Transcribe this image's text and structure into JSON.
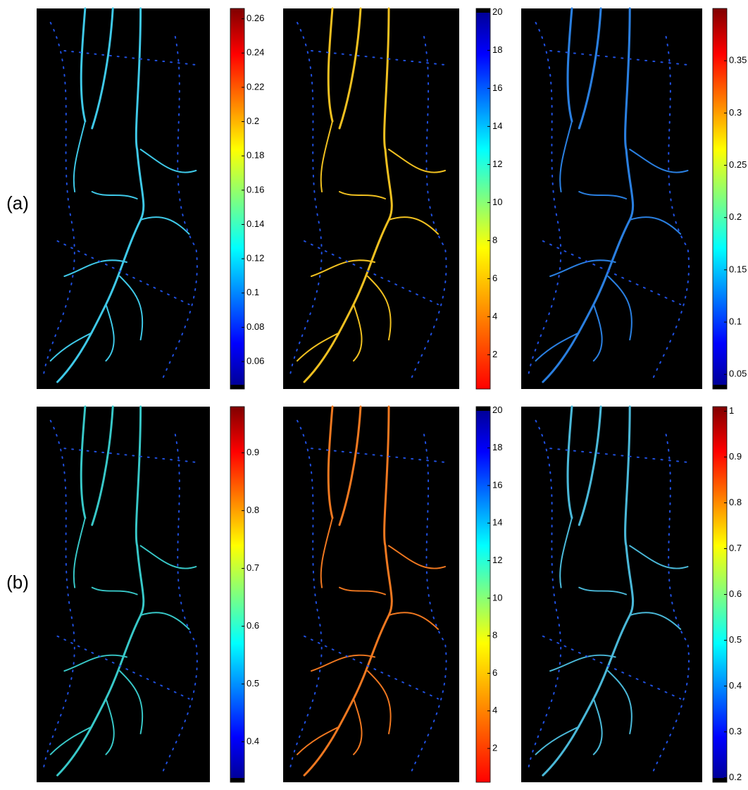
{
  "rows": [
    {
      "label": "(a)",
      "panels": [
        {
          "colorbar": {
            "lim": [
              0.044,
              0.266
            ],
            "ticks": [
              0.06,
              0.08,
              0.1,
              0.12,
              0.14,
              0.16,
              0.18,
              0.2,
              0.22,
              0.24,
              0.26
            ],
            "reversed": false
          }
        },
        {
          "colorbar": {
            "lim": [
              0.2,
              20.2
            ],
            "ticks": [
              2,
              4,
              6,
              8,
              10,
              12,
              14,
              16,
              18,
              20
            ],
            "reversed": true
          }
        },
        {
          "colorbar": {
            "lim": [
              0.036,
              0.4
            ],
            "ticks": [
              0.05,
              0.1,
              0.15,
              0.2,
              0.25,
              0.3,
              0.35
            ],
            "reversed": false
          }
        }
      ]
    },
    {
      "label": "(b)",
      "panels": [
        {
          "colorbar": {
            "lim": [
              0.33,
              0.98
            ],
            "ticks": [
              0.4,
              0.5,
              0.6,
              0.7,
              0.8,
              0.9
            ],
            "reversed": false
          }
        },
        {
          "colorbar": {
            "lim": [
              0.2,
              20.2
            ],
            "ticks": [
              2,
              4,
              6,
              8,
              10,
              12,
              14,
              16,
              18,
              20
            ],
            "reversed": true
          }
        },
        {
          "colorbar": {
            "lim": [
              0.19,
              1.01
            ],
            "ticks": [
              0.2,
              0.3,
              0.4,
              0.5,
              0.6,
              0.7,
              0.8,
              0.9,
              1
            ],
            "reversed": false
          }
        }
      ]
    }
  ]
}
